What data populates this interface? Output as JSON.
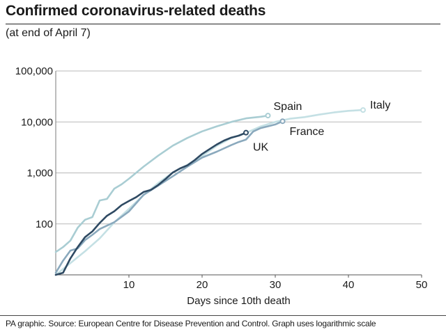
{
  "header": {
    "title": "Confirmed coronavirus-related deaths",
    "subtitle": "(at end of April 7)"
  },
  "footer": {
    "source": "PA graphic. Source: European Centre for Disease Prevention and Control. Graph uses logarithmic scale"
  },
  "chart_data": {
    "type": "line",
    "xlabel": "Days since 10th death",
    "ylabel": "",
    "x_ticks": [
      "10",
      "20",
      "30",
      "40",
      "50"
    ],
    "y_ticks": [
      "100",
      "1,000",
      "10,000",
      "100,000"
    ],
    "xlim": [
      0,
      50
    ],
    "ylim": [
      10,
      100000
    ],
    "y_scale": "log",
    "grid": "horizontal",
    "series": [
      {
        "name": "Spain",
        "color": "#a9cdd3",
        "x": [
          0,
          1,
          2,
          3,
          4,
          5,
          6,
          7,
          8,
          9,
          10,
          12,
          14,
          16,
          18,
          20,
          22,
          24,
          26,
          28,
          29
        ],
        "y": [
          28,
          35,
          47,
          84,
          120,
          136,
          288,
          309,
          491,
          598,
          767,
          1326,
          2182,
          3434,
          4858,
          6528,
          8189,
          10003,
          11744,
          12641,
          13341
        ]
      },
      {
        "name": "Italy",
        "color": "#c4e0e4",
        "x": [
          0,
          2,
          4,
          6,
          8,
          10,
          12,
          14,
          16,
          18,
          20,
          22,
          24,
          26,
          28,
          30,
          32,
          34,
          36,
          38,
          40,
          42
        ],
        "y": [
          10,
          17,
          29,
          52,
          107,
          197,
          366,
          631,
          1016,
          1441,
          2158,
          3405,
          4825,
          6077,
          8165,
          10023,
          11591,
          12428,
          13917,
          15362,
          16523,
          17127
        ]
      },
      {
        "name": "France",
        "color": "#8aa9bd",
        "x": [
          0,
          1,
          2,
          3,
          4,
          5,
          6,
          8,
          10,
          12,
          14,
          16,
          18,
          20,
          22,
          24,
          25,
          26,
          27,
          28,
          30,
          31
        ],
        "y": [
          11,
          19,
          30,
          33,
          48,
          61,
          79,
          108,
          175,
          372,
          562,
          860,
          1331,
          1995,
          2606,
          3523,
          4032,
          4503,
          6507,
          7560,
          8911,
          10328
        ]
      },
      {
        "name": "UK",
        "color": "#2f4a63",
        "x": [
          0,
          1,
          2,
          3,
          4,
          5,
          6,
          7,
          8,
          9,
          10,
          11,
          12,
          13,
          14,
          15,
          16,
          17,
          18,
          19,
          20,
          21,
          22,
          23,
          24,
          25,
          26
        ],
        "y": [
          10,
          11,
          21,
          35,
          55,
          71,
          104,
          144,
          177,
          233,
          281,
          335,
          422,
          465,
          578,
          759,
          1019,
          1228,
          1408,
          1789,
          2352,
          2921,
          3605,
          4313,
          4934,
          5373,
          6159
        ]
      }
    ],
    "labels": {
      "Spain": "Spain",
      "Italy": "Italy",
      "France": "France",
      "UK": "UK"
    }
  }
}
